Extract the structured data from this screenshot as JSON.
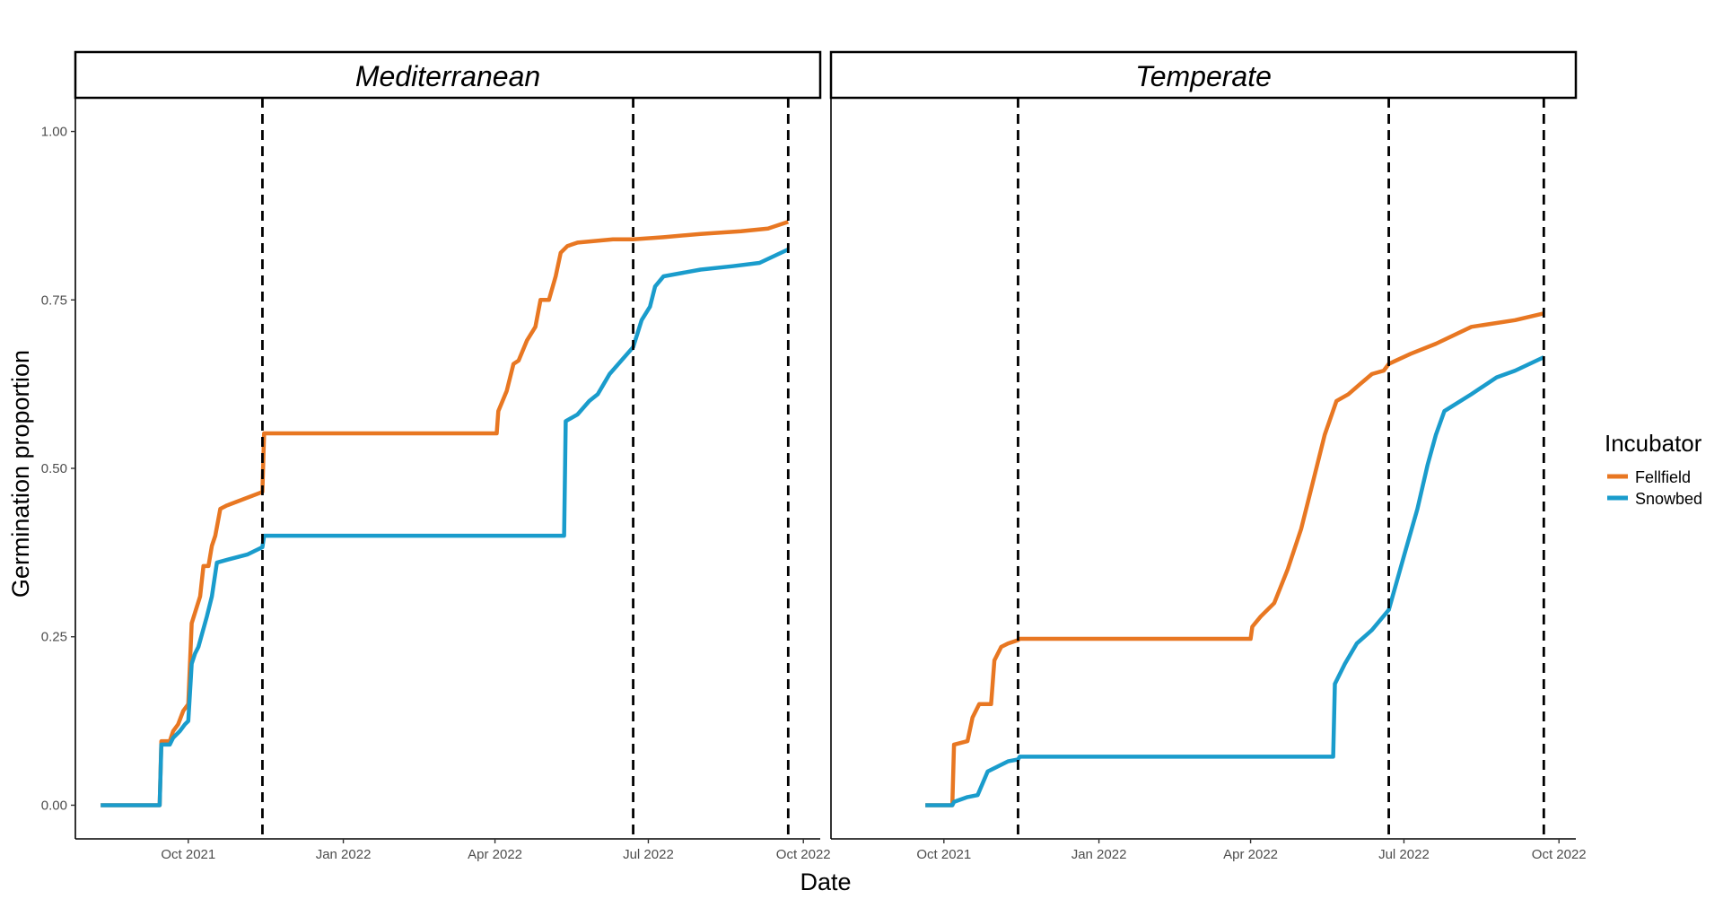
{
  "chart_data": {
    "type": "line",
    "xlabel": "Date",
    "ylabel": "Germination proportion",
    "ylim": [
      -0.05,
      1.05
    ],
    "y_ticks": [
      "0.00",
      "0.25",
      "0.50",
      "0.75",
      "1.00"
    ],
    "x_ticks": [
      "Oct 2021",
      "Jan 2022",
      "Apr 2022",
      "Jul 2022",
      "Oct 2022"
    ],
    "legend": {
      "title": "Incubator",
      "position": "right",
      "entries": [
        {
          "name": "Fellfield",
          "color": "#E87722"
        },
        {
          "name": "Snowbed",
          "color": "#1A9CCC"
        }
      ]
    },
    "grid": false,
    "panels": [
      {
        "title": "Mediterranean",
        "vlines": [
          "2021-11-14",
          "2022-06-22",
          "2022-09-22"
        ],
        "series": [
          {
            "name": "Fellfield",
            "color": "#E87722",
            "x": [
              "2021-08-10",
              "2021-09-14",
              "2021-09-15",
              "2021-09-20",
              "2021-09-22",
              "2021-09-25",
              "2021-09-28",
              "2021-10-01",
              "2021-10-03",
              "2021-10-08",
              "2021-10-10",
              "2021-10-13",
              "2021-10-15",
              "2021-10-17",
              "2021-10-20",
              "2021-10-24",
              "2021-11-14",
              "2021-11-15",
              "2022-04-02",
              "2022-04-03",
              "2022-04-08",
              "2022-04-12",
              "2022-04-15",
              "2022-04-20",
              "2022-04-25",
              "2022-04-28",
              "2022-05-03",
              "2022-05-07",
              "2022-05-10",
              "2022-05-14",
              "2022-05-20",
              "2022-06-10",
              "2022-06-22",
              "2022-07-10",
              "2022-08-01",
              "2022-08-25",
              "2022-09-10",
              "2022-09-22"
            ],
            "y": [
              0.0,
              0.0,
              0.095,
              0.095,
              0.11,
              0.12,
              0.14,
              0.15,
              0.27,
              0.31,
              0.355,
              0.355,
              0.385,
              0.4,
              0.44,
              0.445,
              0.465,
              0.552,
              0.552,
              0.585,
              0.615,
              0.655,
              0.66,
              0.69,
              0.71,
              0.75,
              0.75,
              0.785,
              0.82,
              0.83,
              0.835,
              0.84,
              0.84,
              0.843,
              0.848,
              0.852,
              0.856,
              0.866
            ]
          },
          {
            "name": "Snowbed",
            "color": "#1A9CCC",
            "x": [
              "2021-08-10",
              "2021-09-14",
              "2021-09-15",
              "2021-09-20",
              "2021-09-22",
              "2021-09-26",
              "2021-09-29",
              "2021-10-01",
              "2021-10-03",
              "2021-10-05",
              "2021-10-07",
              "2021-10-12",
              "2021-10-15",
              "2021-10-18",
              "2021-10-25",
              "2021-11-05",
              "2021-11-14",
              "2021-11-15",
              "2022-05-12",
              "2022-05-13",
              "2022-05-20",
              "2022-05-27",
              "2022-06-01",
              "2022-06-08",
              "2022-06-15",
              "2022-06-22",
              "2022-06-27",
              "2022-07-02",
              "2022-07-05",
              "2022-07-10",
              "2022-08-01",
              "2022-08-20",
              "2022-09-05",
              "2022-09-22"
            ],
            "y": [
              0.0,
              0.0,
              0.09,
              0.09,
              0.1,
              0.11,
              0.12,
              0.125,
              0.21,
              0.225,
              0.235,
              0.28,
              0.31,
              0.36,
              0.365,
              0.372,
              0.383,
              0.4,
              0.4,
              0.57,
              0.58,
              0.6,
              0.61,
              0.64,
              0.66,
              0.68,
              0.72,
              0.74,
              0.77,
              0.785,
              0.795,
              0.8,
              0.805,
              0.825
            ]
          }
        ]
      },
      {
        "title": "Temperate",
        "vlines": [
          "2021-11-14",
          "2022-06-22",
          "2022-09-22"
        ],
        "series": [
          {
            "name": "Fellfield",
            "color": "#E87722",
            "x": [
              "2021-09-20",
              "2021-10-06",
              "2021-10-07",
              "2021-10-15",
              "2021-10-18",
              "2021-10-22",
              "2021-10-29",
              "2021-10-31",
              "2021-11-04",
              "2021-11-08",
              "2021-11-14",
              "2021-11-15",
              "2022-04-01",
              "2022-04-02",
              "2022-04-07",
              "2022-04-15",
              "2022-04-23",
              "2022-05-01",
              "2022-05-08",
              "2022-05-15",
              "2022-05-22",
              "2022-05-29",
              "2022-06-05",
              "2022-06-12",
              "2022-06-19",
              "2022-06-22",
              "2022-07-05",
              "2022-07-20",
              "2022-08-10",
              "2022-09-05",
              "2022-09-22"
            ],
            "y": [
              0.0,
              0.0,
              0.09,
              0.095,
              0.13,
              0.15,
              0.15,
              0.215,
              0.235,
              0.24,
              0.245,
              0.247,
              0.247,
              0.265,
              0.28,
              0.3,
              0.35,
              0.41,
              0.48,
              0.55,
              0.6,
              0.61,
              0.625,
              0.64,
              0.645,
              0.655,
              0.67,
              0.685,
              0.71,
              0.72,
              0.73
            ]
          },
          {
            "name": "Snowbed",
            "color": "#1A9CCC",
            "x": [
              "2021-09-20",
              "2021-10-06",
              "2021-10-07",
              "2021-10-15",
              "2021-10-21",
              "2021-10-27",
              "2021-11-08",
              "2021-11-14",
              "2021-11-15",
              "2022-05-20",
              "2022-05-21",
              "2022-05-27",
              "2022-06-03",
              "2022-06-12",
              "2022-06-22",
              "2022-07-01",
              "2022-07-09",
              "2022-07-15",
              "2022-07-20",
              "2022-07-25",
              "2022-08-10",
              "2022-08-25",
              "2022-09-05",
              "2022-09-22"
            ],
            "y": [
              0.0,
              0.0,
              0.005,
              0.012,
              0.015,
              0.05,
              0.065,
              0.068,
              0.072,
              0.072,
              0.18,
              0.21,
              0.24,
              0.26,
              0.29,
              0.37,
              0.44,
              0.505,
              0.55,
              0.585,
              0.61,
              0.635,
              0.645,
              0.665
            ]
          }
        ]
      }
    ]
  }
}
